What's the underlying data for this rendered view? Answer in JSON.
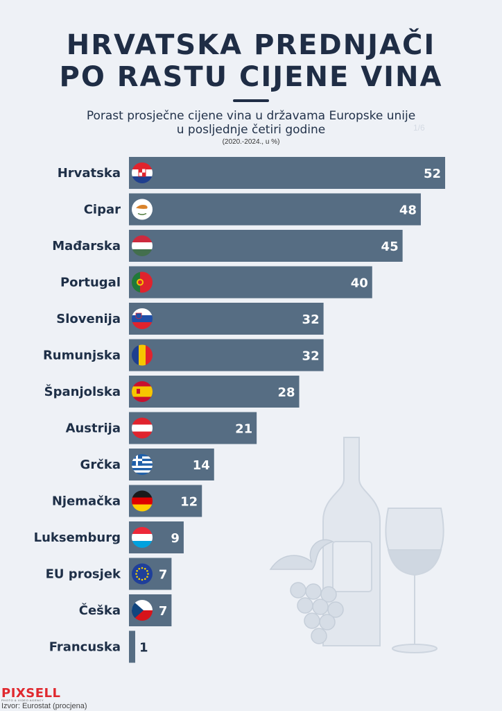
{
  "header": {
    "title_line1": "HRVATSKA PREDNJAČI",
    "title_line2": "PO RASTU CIJENE VINA",
    "subtitle_line1": "Porast prosječne cijene vina u državama Europske unije",
    "subtitle_line2": "u posljednje četiri godine",
    "note": "(2020.-2024., u %)",
    "ghost_text": "1/6"
  },
  "chart_data": {
    "type": "bar",
    "orientation": "horizontal",
    "categories": [
      "Hrvatska",
      "Cipar",
      "Mađarska",
      "Portugal",
      "Slovenija",
      "Rumunjska",
      "Španjolska",
      "Austrija",
      "Grčka",
      "Njemačka",
      "Luksemburg",
      "EU prosjek",
      "Češka",
      "Francuska"
    ],
    "values": [
      52,
      48,
      45,
      40,
      32,
      32,
      28,
      21,
      14,
      12,
      9,
      7,
      7,
      1
    ],
    "flags": [
      "croatia-flag-icon",
      "cyprus-flag-icon",
      "hungary-flag-icon",
      "portugal-flag-icon",
      "slovenia-flag-icon",
      "romania-flag-icon",
      "spain-flag-icon",
      "austria-flag-icon",
      "greece-flag-icon",
      "germany-flag-icon",
      "luxembourg-flag-icon",
      "eu-flag-icon",
      "czechia-flag-icon",
      ""
    ],
    "bar_color": "#566d83",
    "value_color": "#ffffff",
    "title": "",
    "xlabel": "",
    "ylabel": "",
    "xlim": [
      0,
      52
    ],
    "grid": false,
    "legend": "none"
  },
  "footer": {
    "logo": "PIXSELL",
    "logo_sub": "PHOTO & VIDEO AGENCY",
    "source": "Izvor: Eurostat (procjena)"
  },
  "colors": {
    "background": "#eef1f6",
    "title": "#1f2d45",
    "bar": "#566d83",
    "logo": "#e0282e"
  }
}
